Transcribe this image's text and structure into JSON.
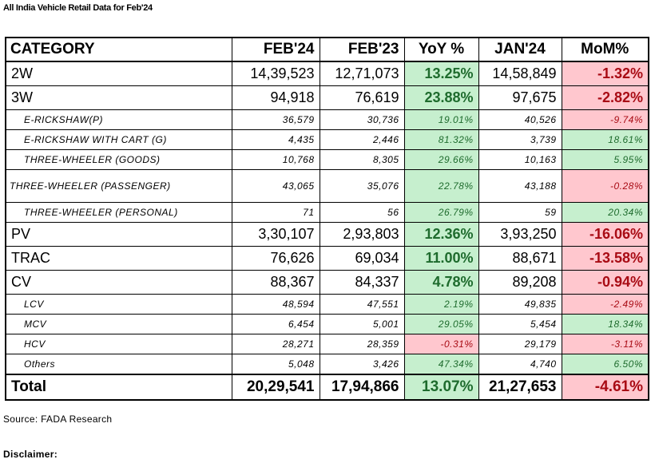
{
  "title": "All India Vehicle Retail Data for Feb'24",
  "header": {
    "category": "CATEGORY",
    "feb24": "FEB'24",
    "feb23": "FEB'23",
    "yoy": "YoY %",
    "jan24": "JAN'24",
    "mom": "MoM%"
  },
  "rows": [
    {
      "category": "2W",
      "feb24": "14,39,523",
      "feb23": "12,71,073",
      "yoy": "13.25%",
      "jan24": "14,58,849",
      "mom": "-1.32%"
    },
    {
      "category": "3W",
      "feb24": "94,918",
      "feb23": "76,619",
      "yoy": "23.88%",
      "jan24": "97,675",
      "mom": "-2.82%"
    },
    {
      "category": "E-RICKSHAW(P)",
      "feb24": "36,579",
      "feb23": "30,736",
      "yoy": "19.01%",
      "jan24": "40,526",
      "mom": "-9.74%"
    },
    {
      "category": "E-RICKSHAW WITH CART (G)",
      "feb24": "4,435",
      "feb23": "2,446",
      "yoy": "81.32%",
      "jan24": "3,739",
      "mom": "18.61%"
    },
    {
      "category": "THREE-WHEELER (GOODS)",
      "feb24": "10,768",
      "feb23": "8,305",
      "yoy": "29.66%",
      "jan24": "10,163",
      "mom": "5.95%"
    },
    {
      "category": "THREE-WHEELER (PASSENGER)",
      "feb24": "43,065",
      "feb23": "35,076",
      "yoy": "22.78%",
      "jan24": "43,188",
      "mom": "-0.28%"
    },
    {
      "category": "THREE-WHEELER (PERSONAL)",
      "feb24": "71",
      "feb23": "56",
      "yoy": "26.79%",
      "jan24": "59",
      "mom": "20.34%"
    },
    {
      "category": "PV",
      "feb24": "3,30,107",
      "feb23": "2,93,803",
      "yoy": "12.36%",
      "jan24": "3,93,250",
      "mom": "-16.06%"
    },
    {
      "category": "TRAC",
      "feb24": "76,626",
      "feb23": "69,034",
      "yoy": "11.00%",
      "jan24": "88,671",
      "mom": "-13.58%"
    },
    {
      "category": "CV",
      "feb24": "88,367",
      "feb23": "84,337",
      "yoy": "4.78%",
      "jan24": "89,208",
      "mom": "-0.94%"
    },
    {
      "category": "LCV",
      "feb24": "48,594",
      "feb23": "47,551",
      "yoy": "2.19%",
      "jan24": "49,835",
      "mom": "-2.49%"
    },
    {
      "category": "MCV",
      "feb24": "6,454",
      "feb23": "5,001",
      "yoy": "29.05%",
      "jan24": "5,454",
      "mom": "18.34%"
    },
    {
      "category": "HCV",
      "feb24": "28,271",
      "feb23": "28,359",
      "yoy": "-0.31%",
      "jan24": "29,179",
      "mom": "-3.11%"
    },
    {
      "category": "Others",
      "feb24": "5,048",
      "feb23": "3,426",
      "yoy": "47.34%",
      "jan24": "4,740",
      "mom": "6.50%"
    }
  ],
  "total": {
    "category": "Total",
    "feb24": "20,29,541",
    "feb23": "17,94,866",
    "yoy": "13.07%",
    "jan24": "21,27,653",
    "mom": "-4.61%"
  },
  "source": "Source: FADA Research",
  "disclaimer": "Disclaimer:"
}
